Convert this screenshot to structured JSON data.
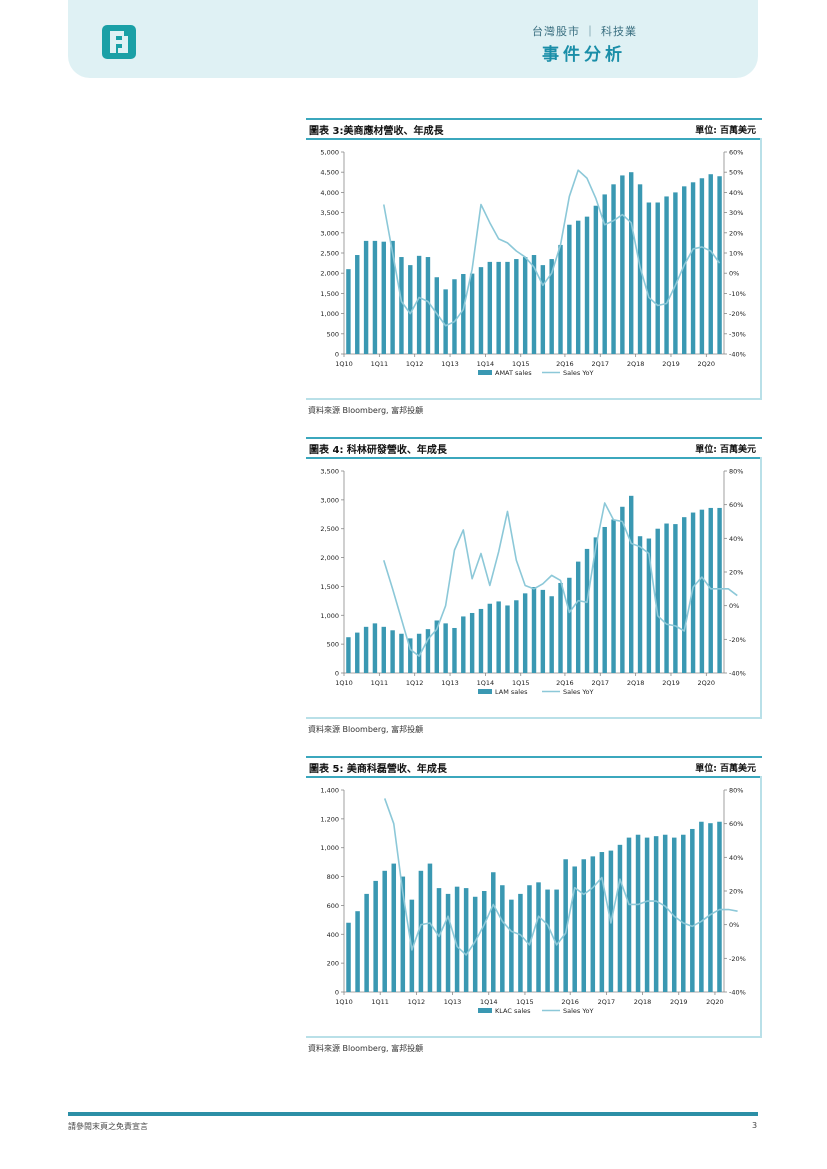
{
  "header": {
    "market": "台灣股市 ｜ 科技業",
    "title": "事件分析",
    "colors": {
      "band": "#dff1f4",
      "accent": "#1a8ea8",
      "logo": "#1aa0a6"
    }
  },
  "charts": [
    {
      "title": "圖表 3:美商應材營收、年成長",
      "unit": "單位: 百萬美元",
      "source": "資料來源 Bloomberg, 富邦投顧"
    },
    {
      "title": "圖表 4: 科林研發營收、年成長",
      "unit": "單位: 百萬美元",
      "source": "資料來源 Bloomberg, 富邦投顧"
    },
    {
      "title": "圖表 5: 美商科磊營收、年成長",
      "unit": "單位: 百萬美元",
      "source": "資料來源 Bloomberg, 富邦投顧"
    }
  ],
  "chart_data": [
    {
      "type": "bar+line",
      "title": "圖表 3:美商應材營收、年成長",
      "bar_color": "#3a98b2",
      "line_color": "#8cc8d8",
      "x_tick_labels": [
        "1Q10",
        "1Q11",
        "1Q12",
        "1Q13",
        "1Q14",
        "1Q15",
        "2Q16",
        "2Q17",
        "2Q18",
        "2Q19",
        "2Q20"
      ],
      "x_tick_index": [
        0,
        4,
        8,
        12,
        16,
        20,
        25,
        29,
        33,
        37,
        41
      ],
      "y_left": {
        "min": 0,
        "max": 5000,
        "ticks": [
          0,
          500,
          1000,
          1500,
          2000,
          2500,
          3000,
          3500,
          4000,
          4500,
          5000
        ],
        "tick_labels": [
          "0",
          "500",
          "1,000",
          "1,500",
          "2,000",
          "2,500",
          "3,000",
          "3,500",
          "4,000",
          "4,500",
          "5,000"
        ]
      },
      "y_right": {
        "min": -40,
        "max": 60,
        "ticks": [
          -40,
          -30,
          -20,
          -10,
          0,
          10,
          20,
          30,
          40,
          50,
          60
        ],
        "tick_labels": [
          "-40%",
          "-30%",
          "-20%",
          "-10%",
          "0%",
          "10%",
          "20%",
          "30%",
          "40%",
          "50%",
          "60%"
        ]
      },
      "series": [
        {
          "name": "AMAT sales",
          "kind": "bar",
          "values": [
            2100,
            2450,
            2800,
            2800,
            2780,
            2800,
            2400,
            2200,
            2430,
            2400,
            1900,
            1600,
            1850,
            1980,
            1990,
            2150,
            2280,
            2280,
            2280,
            2350,
            2400,
            2450,
            2200,
            2350,
            2700,
            3200,
            3300,
            3400,
            3670,
            3950,
            4200,
            4420,
            4500,
            4200,
            3750,
            3750,
            3900,
            4000,
            4150,
            4250,
            4350,
            4450,
            4400
          ]
        },
        {
          "name": "Sales YoY",
          "kind": "line",
          "start_index": 4,
          "values": [
            34,
            10,
            -14,
            -20,
            -12,
            -14,
            -20,
            -26,
            -24,
            -18,
            2,
            34,
            25,
            17,
            15,
            11,
            8,
            3,
            -6,
            0,
            14,
            38,
            51,
            47,
            37,
            24,
            26,
            29,
            25,
            3,
            -12,
            -16,
            -15,
            -6,
            4,
            12,
            13,
            11,
            5
          ]
        }
      ],
      "legend": [
        "AMAT sales",
        "Sales YoY"
      ]
    },
    {
      "type": "bar+line",
      "title": "圖表 4: 科林研發營收、年成長",
      "bar_color": "#3a98b2",
      "line_color": "#8cc8d8",
      "x_tick_labels": [
        "1Q10",
        "1Q11",
        "1Q12",
        "1Q13",
        "1Q14",
        "1Q15",
        "2Q16",
        "2Q17",
        "2Q18",
        "2Q19",
        "2Q20"
      ],
      "x_tick_index": [
        0,
        4,
        8,
        12,
        16,
        20,
        25,
        29,
        33,
        37,
        41
      ],
      "y_left": {
        "min": 0,
        "max": 3500,
        "ticks": [
          0,
          500,
          1000,
          1500,
          2000,
          2500,
          3000,
          3500
        ],
        "tick_labels": [
          "0",
          "500",
          "1,000",
          "1,500",
          "2,000",
          "2,500",
          "3,000",
          "3,500"
        ]
      },
      "y_right": {
        "min": -40,
        "max": 80,
        "ticks": [
          -40,
          -20,
          0,
          20,
          40,
          60,
          80
        ],
        "tick_labels": [
          "-40%",
          "-20%",
          "0%",
          "20%",
          "40%",
          "60%",
          "80%"
        ]
      },
      "series": [
        {
          "name": "LAM sales",
          "kind": "bar",
          "values": [
            620,
            700,
            800,
            860,
            800,
            740,
            680,
            600,
            680,
            760,
            910,
            860,
            780,
            980,
            1040,
            1110,
            1200,
            1240,
            1170,
            1260,
            1380,
            1490,
            1440,
            1330,
            1560,
            1650,
            1930,
            2150,
            2350,
            2530,
            2660,
            2880,
            3070,
            2370,
            2330,
            2500,
            2590,
            2580,
            2700,
            2780,
            2830,
            2860,
            2860
          ]
        },
        {
          "name": "Sales YoY",
          "kind": "line",
          "start_index": 4,
          "values": [
            27,
            10,
            -8,
            -26,
            -30,
            -20,
            -14,
            0,
            33,
            45,
            16,
            31,
            12,
            32,
            56,
            27,
            12,
            10,
            13,
            18,
            15,
            -4,
            3,
            2,
            35,
            61,
            51,
            50,
            37,
            35,
            31,
            -6,
            -11,
            -12,
            -15,
            11,
            17,
            10,
            10,
            10,
            6
          ]
        }
      ],
      "legend": [
        "LAM sales",
        "Sales YoY"
      ]
    },
    {
      "type": "bar+line",
      "title": "圖表 5: 美商科磊營收、年成長",
      "bar_color": "#3a98b2",
      "line_color": "#8cc8d8",
      "x_tick_labels": [
        "1Q10",
        "1Q11",
        "1Q12",
        "1Q13",
        "1Q14",
        "1Q15",
        "2Q16",
        "2Q17",
        "2Q18",
        "2Q19",
        "2Q20"
      ],
      "x_tick_index": [
        0,
        4,
        8,
        12,
        16,
        20,
        25,
        29,
        33,
        37,
        41
      ],
      "y_left": {
        "min": 0,
        "max": 1400,
        "ticks": [
          0,
          200,
          400,
          600,
          800,
          1000,
          1200,
          1400
        ],
        "tick_labels": [
          "0",
          "200",
          "400",
          "600",
          "800",
          "1,000",
          "1,200",
          "1,400"
        ]
      },
      "y_right": {
        "min": -40,
        "max": 80,
        "ticks": [
          -40,
          -20,
          0,
          20,
          40,
          60,
          80
        ],
        "tick_labels": [
          "-40%",
          "-20%",
          "0%",
          "20%",
          "40%",
          "60%",
          "80%"
        ]
      },
      "series": [
        {
          "name": "KLAC sales",
          "kind": "bar",
          "values": [
            480,
            560,
            680,
            770,
            840,
            890,
            800,
            640,
            840,
            890,
            720,
            680,
            730,
            720,
            660,
            700,
            830,
            740,
            640,
            680,
            740,
            760,
            710,
            710,
            920,
            870,
            920,
            940,
            970,
            980,
            1020,
            1070,
            1090,
            1070,
            1080,
            1090,
            1070,
            1090,
            1130,
            1180,
            1170,
            1180
          ]
        },
        {
          "name": "Sales YoY",
          "kind": "line",
          "start_index": 4,
          "values": [
            75,
            60,
            19,
            -15,
            0,
            1,
            -7,
            5,
            -13,
            -18,
            -10,
            0,
            12,
            2,
            -4,
            -6,
            -12,
            5,
            0,
            -12,
            -5,
            22,
            18,
            22,
            28,
            1,
            27,
            12,
            12,
            14,
            14,
            11,
            5,
            1,
            -1,
            2,
            6,
            9,
            9,
            8
          ]
        }
      ],
      "legend": [
        "KLAC sales",
        "Sales YoY"
      ]
    }
  ],
  "footer": {
    "disclaimer": "請參閱末頁之免責宣言",
    "page": "3"
  }
}
